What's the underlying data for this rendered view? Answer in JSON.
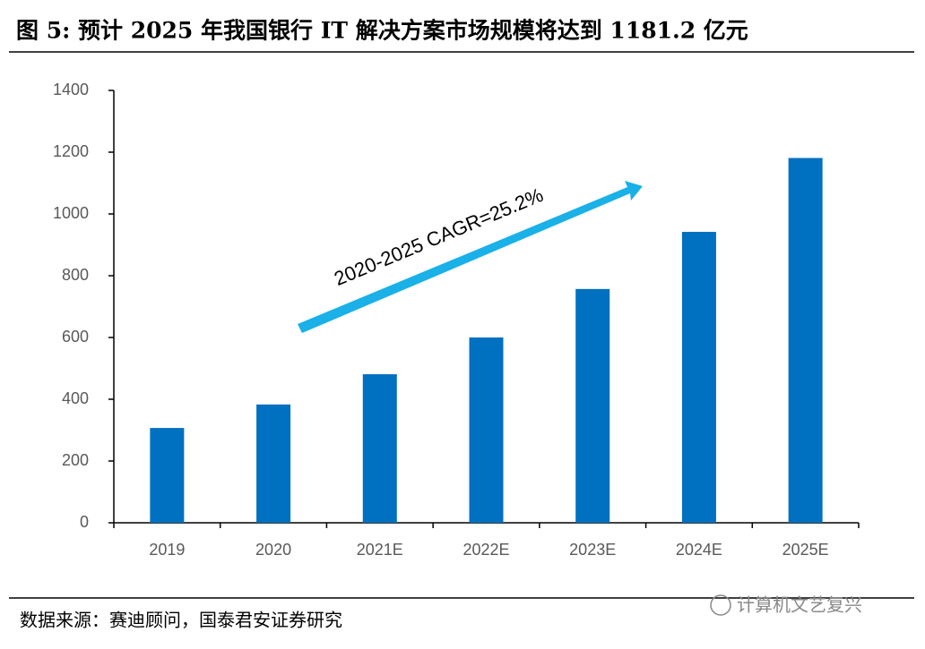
{
  "chart_data": {
    "type": "bar",
    "title": "图  5:  预计 2025 年我国银行 IT 解决方案市场规模将达到 1181.2 亿元",
    "categories": [
      "2019",
      "2020",
      "2021E",
      "2022E",
      "2023E",
      "2024E",
      "2025E"
    ],
    "values": [
      307,
      383,
      481,
      600,
      757,
      942,
      1181.2
    ],
    "color": "#0070c0",
    "ylim": [
      0,
      1400
    ],
    "yticks": [
      0,
      200,
      400,
      600,
      800,
      1000,
      1200,
      1400
    ],
    "annotation": "2020-2025 CAGR=25.2%",
    "source": "数据来源：赛迪顾问，国泰君安证券研究",
    "watermark": "计算机文艺复兴"
  }
}
